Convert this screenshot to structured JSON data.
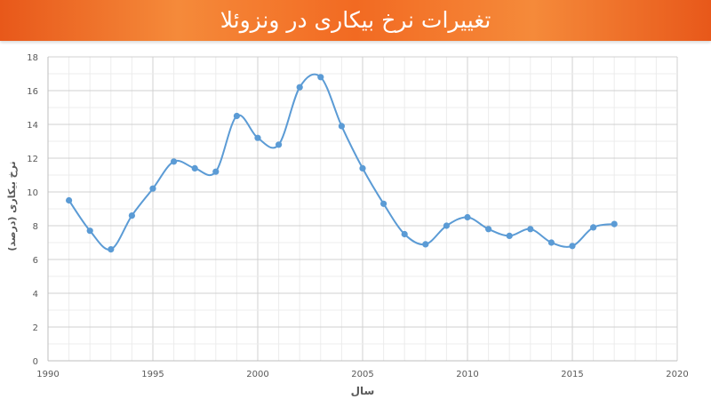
{
  "banner": {
    "title": "تغییرات نرخ بیکاری در ونزوئلا"
  },
  "chart_data": {
    "type": "line",
    "title": "تغییرات نرخ بیکاری در ونزوئلا",
    "xlabel": "سال",
    "ylabel": "نرخ بیکاری (درصد)",
    "xlim": [
      1990,
      2020
    ],
    "ylim": [
      0,
      18
    ],
    "xticks": [
      1990,
      1995,
      2000,
      2005,
      2010,
      2015,
      2020
    ],
    "yticks": [
      0,
      2,
      4,
      6,
      8,
      10,
      12,
      14,
      16,
      18
    ],
    "grid": true,
    "smooth": true,
    "series": [
      {
        "color": "#5b9bd5",
        "points": [
          {
            "x": 1991,
            "y": 9.5
          },
          {
            "x": 1992,
            "y": 7.7
          },
          {
            "x": 1993,
            "y": 6.6
          },
          {
            "x": 1994,
            "y": 8.6
          },
          {
            "x": 1995,
            "y": 10.2
          },
          {
            "x": 1996,
            "y": 11.8
          },
          {
            "x": 1997,
            "y": 11.4
          },
          {
            "x": 1998,
            "y": 11.2
          },
          {
            "x": 1999,
            "y": 14.5
          },
          {
            "x": 2000,
            "y": 13.2
          },
          {
            "x": 2001,
            "y": 12.8
          },
          {
            "x": 2002,
            "y": 16.2
          },
          {
            "x": 2003,
            "y": 16.8
          },
          {
            "x": 2004,
            "y": 13.9
          },
          {
            "x": 2005,
            "y": 11.4
          },
          {
            "x": 2006,
            "y": 9.3
          },
          {
            "x": 2007,
            "y": 7.5
          },
          {
            "x": 2008,
            "y": 6.9
          },
          {
            "x": 2009,
            "y": 8.0
          },
          {
            "x": 2010,
            "y": 8.5
          },
          {
            "x": 2011,
            "y": 7.8
          },
          {
            "x": 2012,
            "y": 7.4
          },
          {
            "x": 2013,
            "y": 7.8
          },
          {
            "x": 2014,
            "y": 7.0
          },
          {
            "x": 2015,
            "y": 6.8
          },
          {
            "x": 2016,
            "y": 7.9
          },
          {
            "x": 2017,
            "y": 8.1
          }
        ]
      }
    ]
  }
}
